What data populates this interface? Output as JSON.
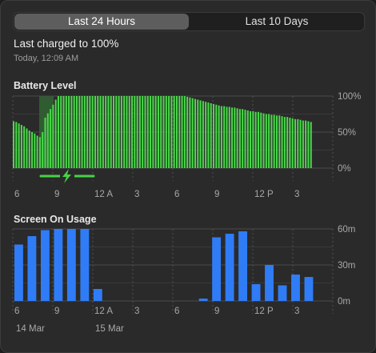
{
  "tabs": [
    {
      "label": "Last 24 Hours",
      "active": true
    },
    {
      "label": "Last 10 Days",
      "active": false
    }
  ],
  "last_charged": {
    "title": "Last charged to 100%",
    "time": "Today, 12:09 AM"
  },
  "colors": {
    "battery_bar": "#4ad94a",
    "charging_band": "#2f5c30",
    "charging_line": "#46d246",
    "screen_bar": "#2f7cf6",
    "grid": "#4a4a4a",
    "grid_dotted": "#505050",
    "axis_text": "#a8a8a8"
  },
  "chart_data": [
    {
      "type": "bar",
      "title": "Battery Level",
      "y_ticks": [
        "100%",
        "50%",
        "0%"
      ],
      "ylim": [
        0,
        100
      ],
      "x_tick_labels": [
        "6",
        "9",
        "12 A",
        "3",
        "6",
        "9",
        "12 P",
        "3"
      ],
      "charging_icon": "lightning-bolt-icon",
      "values": [
        65,
        64,
        62,
        60,
        58,
        55,
        52,
        50,
        48,
        45,
        43,
        50,
        70,
        76,
        82,
        88,
        95,
        100,
        100,
        100,
        100,
        100,
        100,
        100,
        100,
        100,
        100,
        100,
        100,
        100,
        100,
        100,
        100,
        100,
        100,
        100,
        100,
        100,
        100,
        100,
        100,
        100,
        100,
        100,
        100,
        100,
        100,
        100,
        100,
        100,
        100,
        100,
        100,
        100,
        100,
        100,
        100,
        100,
        100,
        100,
        100,
        100,
        100,
        100,
        100,
        100,
        99,
        98,
        97,
        96,
        95,
        94,
        93,
        92,
        91,
        90,
        89,
        88,
        87,
        86,
        86,
        85,
        85,
        84,
        84,
        83,
        82,
        82,
        81,
        80,
        79,
        79,
        78,
        78,
        77,
        76,
        75,
        75,
        74,
        74,
        73,
        73,
        72,
        71,
        71,
        70,
        69,
        68,
        68,
        67,
        66,
        66,
        65,
        64
      ]
    },
    {
      "type": "bar",
      "title": "Screen On Usage",
      "y_ticks": [
        "60m",
        "30m",
        "0m"
      ],
      "ylim": [
        0,
        60
      ],
      "x_tick_labels": [
        "6",
        "9",
        "12 A",
        "3",
        "6",
        "9",
        "12 P",
        "3"
      ],
      "date_labels": [
        "14 Mar",
        "15 Mar"
      ],
      "values": [
        47,
        54,
        59,
        60,
        60,
        60,
        10,
        0,
        0,
        0,
        0,
        0,
        0,
        0,
        2,
        53,
        56,
        58,
        14,
        30,
        13,
        22,
        20
      ]
    }
  ]
}
